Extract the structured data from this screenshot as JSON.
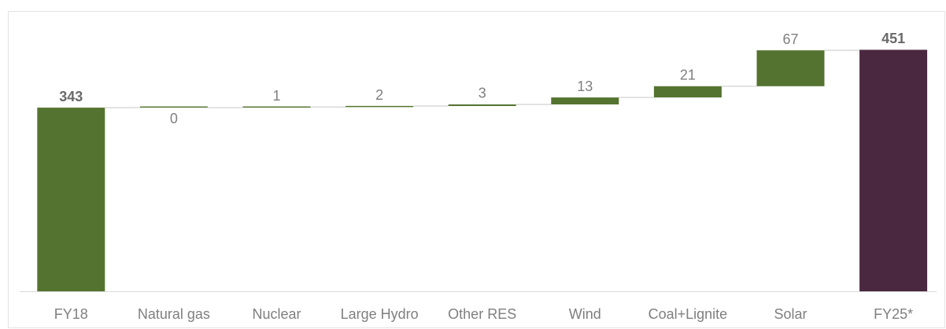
{
  "chart_data": {
    "type": "waterfall",
    "categories": [
      "FY18",
      "Natural gas",
      "Nuclear",
      "Large Hydro",
      "Other RES",
      "Wind",
      "Coal+Lignite",
      "Solar",
      "FY25*"
    ],
    "values": [
      343,
      0,
      1,
      2,
      3,
      13,
      21,
      67,
      451
    ],
    "measure": [
      "absolute",
      "relative",
      "relative",
      "relative",
      "relative",
      "relative",
      "relative",
      "relative",
      "total"
    ],
    "colors": {
      "total": "#557330",
      "increase": "#557330",
      "final": "#4a2840"
    },
    "ylim": [
      0,
      522
    ]
  }
}
